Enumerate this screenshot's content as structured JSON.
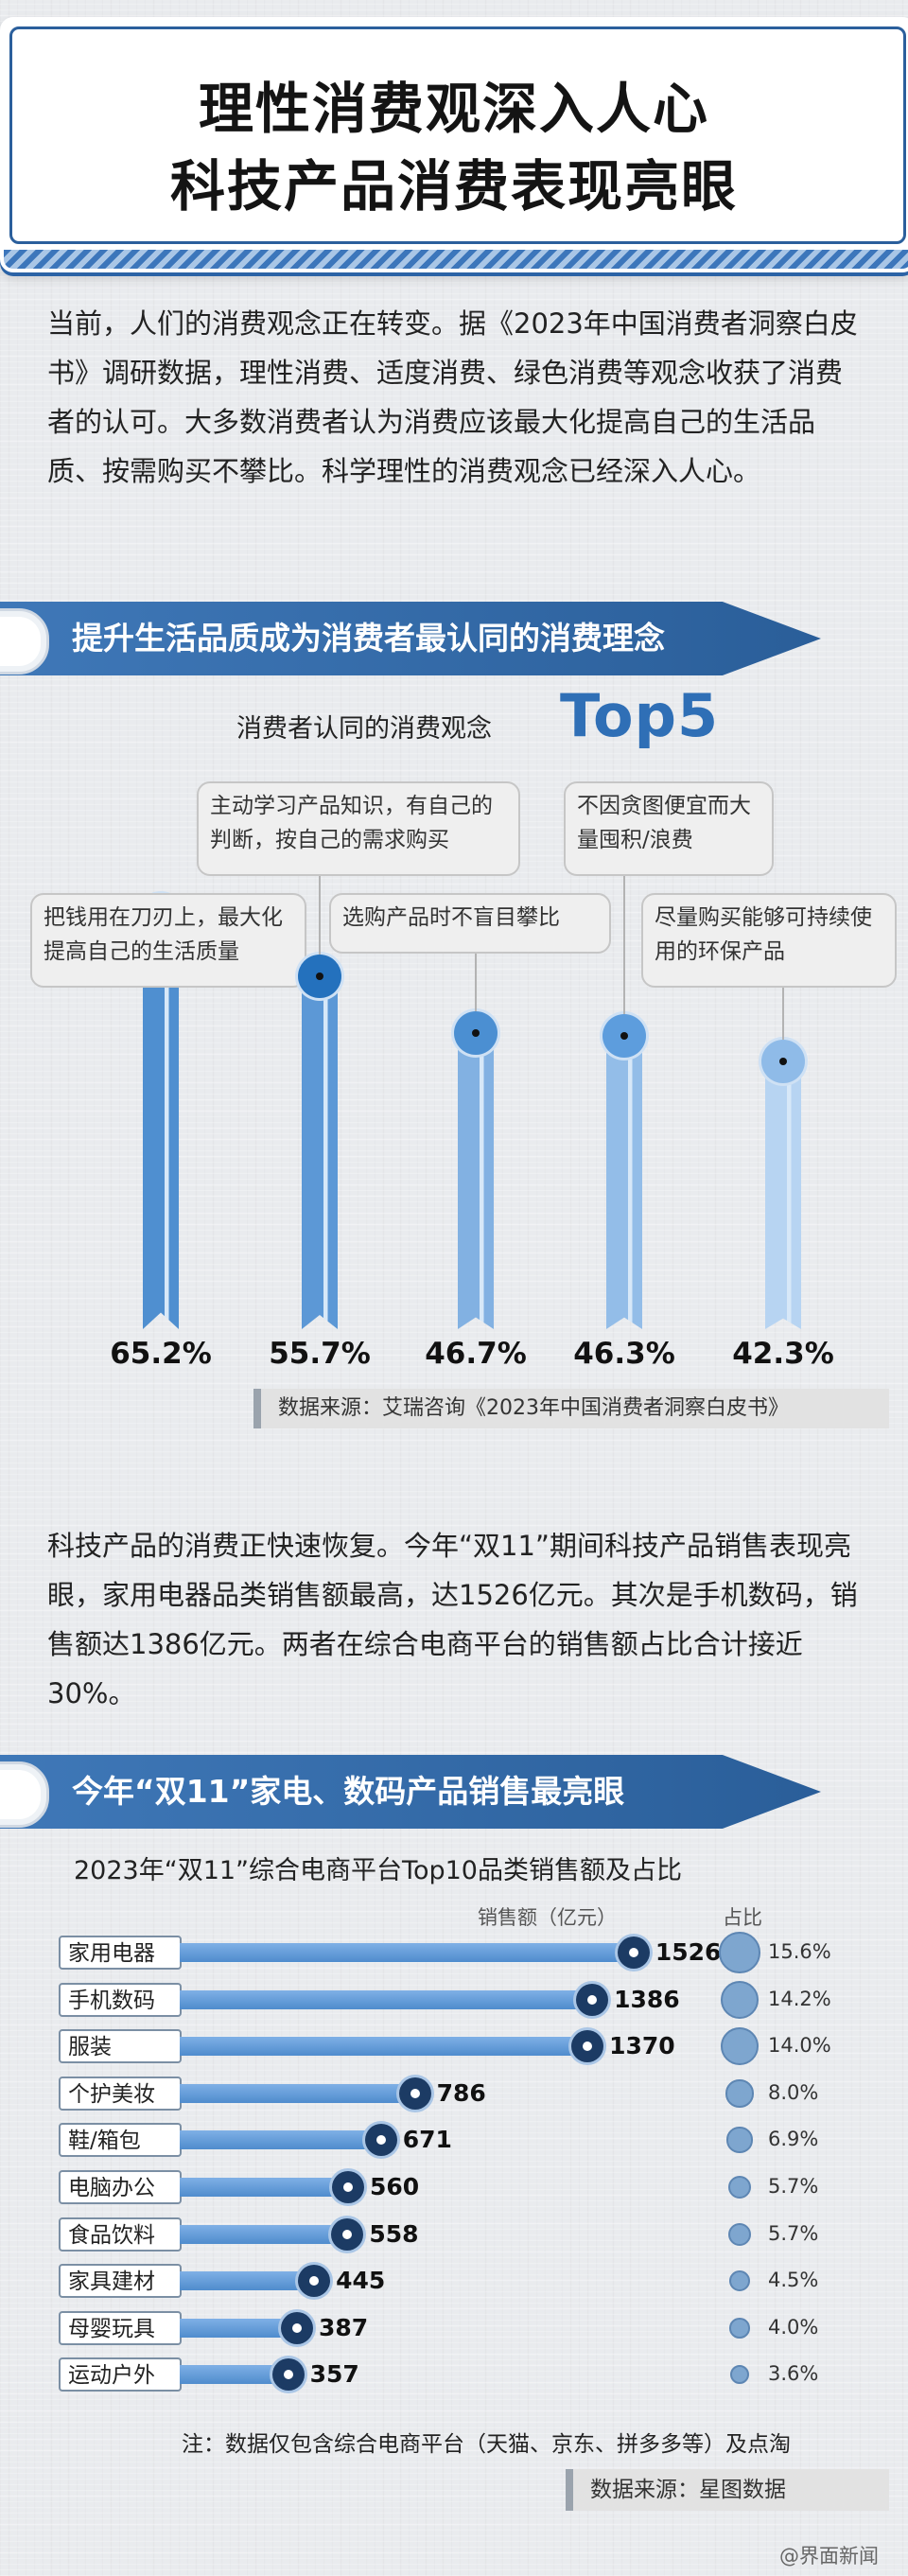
{
  "header": {
    "title_line1": "理性消费观深入人心",
    "title_line2": "科技产品消费表现亮眼"
  },
  "intro_text": "当前，人们的消费观念正在转变。据《2023年中国消费者洞察白皮书》调研数据，理性消费、适度消费、绿色消费等观念收获了消费者的认可。大多数消费者认为消费应该最大化提高自己的生活品质、按需购买不攀比。科学理性的消费观念已经深入人心。",
  "section1": {
    "banner": "提升生活品质成为消费者最认同的消费理念",
    "chart_title": "消费者认同的消费观念",
    "chart_badge": "Top5",
    "source": "数据来源：艾瑞咨询《2023年中国消费者洞察白皮书》"
  },
  "middle_text": "科技产品的消费正快速恢复。今年“双11”期间科技产品销售表现亮眼，家用电器品类销售额最高，达1526亿元。其次是手机数码，销售额达1386亿元。两者在综合电商平台的销售额占比合计接近30%。",
  "section2": {
    "banner": "今年“双11”家电、数码产品销售最亮眼",
    "chart_title": "2023年“双11”综合电商平台Top10品类销售额及占比",
    "col_sales": "销售额（亿元）",
    "col_share": "占比",
    "note": "注：数据仅包含综合电商平台（天猫、京东、拼多多等）及点淘",
    "source": "数据来源：星图数据"
  },
  "watermark": "@界面新闻",
  "colors": {
    "banner": "#2f6aab",
    "bar_dark": "#2f6fb6",
    "bar_light": "#bcd8f5",
    "dot_dark": "#1c3b64"
  },
  "chart_data": [
    {
      "type": "bar",
      "title": "消费者认同的消费观念",
      "categories": [
        "把钱用在刀刃上，最大化提高自己的生活质量",
        "主动学习产品知识，有自己的判断，按自己的需求购买",
        "选购产品时不盲目攀比",
        "不因贪图便宜而大量囤积/浪费",
        "尽量购买能够可持续使用的环保产品"
      ],
      "values": [
        65.2,
        55.7,
        46.7,
        46.3,
        42.3
      ],
      "value_labels": [
        "65.2%",
        "55.7%",
        "46.7%",
        "46.3%",
        "42.3%"
      ],
      "unit": "%",
      "ylim": [
        0,
        70
      ]
    },
    {
      "type": "bar",
      "orientation": "horizontal",
      "title": "2023年“双11”综合电商平台Top10品类销售额及占比",
      "categories": [
        "家用电器",
        "手机数码",
        "服装",
        "个护美妆",
        "鞋/箱包",
        "电脑办公",
        "食品饮料",
        "家具建材",
        "母婴玩具",
        "运动户外"
      ],
      "series": [
        {
          "name": "销售额（亿元）",
          "values": [
            1526,
            1386,
            1370,
            786,
            671,
            560,
            558,
            445,
            387,
            357
          ]
        },
        {
          "name": "占比",
          "values": [
            15.6,
            14.2,
            14.0,
            8.0,
            6.9,
            5.7,
            5.7,
            4.5,
            4.0,
            3.6
          ],
          "value_labels": [
            "15.6%",
            "14.2%",
            "14.0%",
            "8.0%",
            "6.9%",
            "5.7%",
            "5.7%",
            "4.5%",
            "4.0%",
            "3.6%"
          ]
        }
      ],
      "xlim": [
        0,
        1600
      ]
    }
  ]
}
